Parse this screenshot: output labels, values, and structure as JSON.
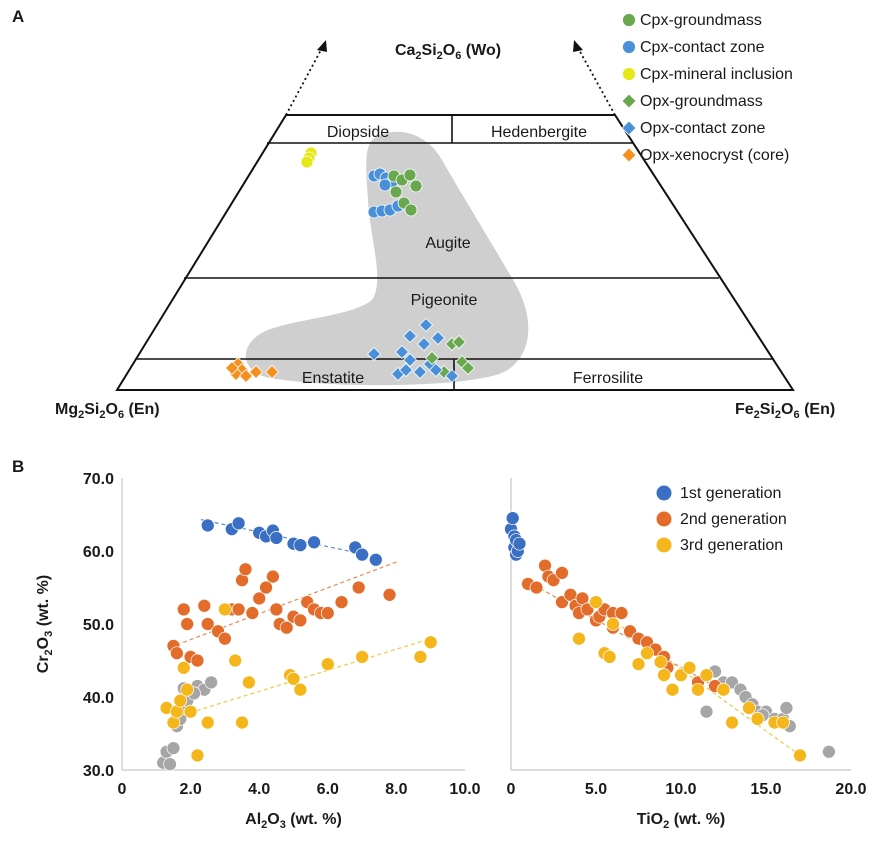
{
  "panel_labels": {
    "a": "A",
    "b": "B"
  },
  "ternary": {
    "apex_top": {
      "main": "Ca",
      "s1": "2",
      "mid": "Si",
      "s2": "2",
      "mid2": "O",
      "s3": "6",
      "tail": " (Wo)"
    },
    "corner_left": {
      "main": "Mg",
      "s1": "2",
      "mid": "Si",
      "s2": "2",
      "mid2": "O",
      "s3": "6",
      "tail": " (En)"
    },
    "corner_right": {
      "main": "Fe",
      "s1": "2",
      "mid": "Si",
      "s2": "2",
      "mid2": "O",
      "s3": "6",
      "tail": " (En)"
    },
    "fields": {
      "diopside": "Diopside",
      "hedenbergite": "Hedenbergite",
      "augite": "Augite",
      "pigeonite": "Pigeonite",
      "enstatite": "Enstatite",
      "ferrosilite": "Ferrosilite"
    },
    "legend": [
      {
        "label": "Cpx-groundmass",
        "marker": "circle",
        "color": "#6aa84f"
      },
      {
        "label": "Cpx-contact zone",
        "marker": "circle",
        "color": "#4a90d9"
      },
      {
        "label": "Cpx-mineral inclusion",
        "marker": "circle",
        "color": "#e6e619"
      },
      {
        "label": "Opx-groundmass",
        "marker": "diamond",
        "color": "#6aa84f"
      },
      {
        "label": "Opx-contact zone",
        "marker": "diamond",
        "color": "#4a90d9"
      },
      {
        "label": "Opx-xenocryst (core)",
        "marker": "diamond",
        "color": "#f5901e"
      }
    ]
  },
  "chart_data": [
    {
      "type": "scatter",
      "title": "",
      "xlabel": {
        "main": "Al",
        "s1": "2",
        "mid": "O",
        "s2": "3",
        "tail": " (wt. %)"
      },
      "ylabel": {
        "main": "Cr",
        "s1": "2",
        "mid": "O",
        "s2": "3",
        "tail": " (wt. %)"
      },
      "xlim": [
        0,
        10
      ],
      "ylim": [
        30,
        70
      ],
      "x_ticks": [
        "0",
        "2.0",
        "4.0",
        "6.0",
        "8.0",
        "10.0"
      ],
      "y_ticks": [
        "30.0",
        "40.0",
        "50.0",
        "60.0",
        "70.0"
      ],
      "grid": false,
      "series": [
        {
          "color": "#a6a6a6",
          "points": [
            [
              1.2,
              31
            ],
            [
              1.3,
              32.5
            ],
            [
              1.4,
              30.8
            ],
            [
              1.5,
              33
            ],
            [
              1.6,
              36
            ],
            [
              1.7,
              37
            ],
            [
              1.8,
              38.5
            ],
            [
              1.9,
              39.5
            ],
            [
              2.0,
              41
            ],
            [
              2.2,
              41.5
            ],
            [
              2.4,
              41
            ],
            [
              2.6,
              42
            ],
            [
              1.8,
              41.2
            ],
            [
              2.1,
              40.5
            ]
          ]
        },
        {
          "name": "1st generation",
          "color": "#3a6fc4",
          "points": [
            [
              2.5,
              63.5
            ],
            [
              3.2,
              63
            ],
            [
              3.4,
              63.8
            ],
            [
              4.0,
              62.5
            ],
            [
              4.2,
              62
            ],
            [
              4.4,
              62.8
            ],
            [
              4.5,
              61.8
            ],
            [
              5.0,
              61
            ],
            [
              5.2,
              60.8
            ],
            [
              5.6,
              61.2
            ],
            [
              6.8,
              60.5
            ],
            [
              7.0,
              59.5
            ],
            [
              7.4,
              58.8
            ]
          ],
          "trend": [
            [
              2.3,
              64.3
            ],
            [
              7.6,
              59.0
            ]
          ]
        },
        {
          "name": "2nd generation",
          "color": "#e46c2a",
          "points": [
            [
              1.5,
              47
            ],
            [
              1.6,
              46
            ],
            [
              1.8,
              52
            ],
            [
              1.9,
              50
            ],
            [
              2.0,
              45.5
            ],
            [
              2.2,
              45
            ],
            [
              2.4,
              52.5
            ],
            [
              2.5,
              50
            ],
            [
              2.8,
              49
            ],
            [
              3.0,
              48
            ],
            [
              3.2,
              52
            ],
            [
              3.4,
              52
            ],
            [
              3.5,
              56
            ],
            [
              3.6,
              57.5
            ],
            [
              3.8,
              51.5
            ],
            [
              4.0,
              53.5
            ],
            [
              4.2,
              55
            ],
            [
              4.4,
              56.5
            ],
            [
              4.5,
              52
            ],
            [
              4.6,
              50
            ],
            [
              4.8,
              49.5
            ],
            [
              5.0,
              51
            ],
            [
              5.2,
              50.5
            ],
            [
              5.4,
              53
            ],
            [
              5.6,
              52
            ],
            [
              5.8,
              51.5
            ],
            [
              6.0,
              51.5
            ],
            [
              6.4,
              53
            ],
            [
              6.9,
              55
            ],
            [
              7.8,
              54
            ]
          ],
          "trend": [
            [
              1.4,
              46.8
            ],
            [
              8.0,
              58.5
            ]
          ]
        },
        {
          "name": "3rd generation",
          "color": "#f5b61c",
          "points": [
            [
              1.3,
              38.5
            ],
            [
              1.5,
              36.5
            ],
            [
              1.6,
              38
            ],
            [
              1.7,
              39.5
            ],
            [
              1.8,
              44
            ],
            [
              1.9,
              41
            ],
            [
              2.0,
              38
            ],
            [
              2.5,
              36.5
            ],
            [
              3.0,
              52
            ],
            [
              3.3,
              45
            ],
            [
              3.5,
              36.5
            ],
            [
              3.7,
              42
            ],
            [
              4.9,
              43
            ],
            [
              5.0,
              42.5
            ],
            [
              5.2,
              41
            ],
            [
              6.0,
              44.5
            ],
            [
              7.0,
              45.5
            ],
            [
              8.7,
              45.5
            ],
            [
              9.0,
              47.5
            ],
            [
              2.2,
              32
            ]
          ],
          "trend": [
            [
              1.4,
              37.0
            ],
            [
              9.0,
              48.0
            ]
          ]
        }
      ]
    },
    {
      "type": "scatter",
      "title": "",
      "xlabel": {
        "main": "TiO",
        "s1": "2",
        "mid": "",
        "s2": "",
        "tail": " (wt. %)"
      },
      "xlim": [
        0,
        20
      ],
      "ylim": [
        30,
        70
      ],
      "x_ticks": [
        "0",
        "5.0",
        "10.0",
        "15.0",
        "20.0"
      ],
      "grid": false,
      "series": [
        {
          "color": "#a6a6a6",
          "points": [
            [
              12.0,
              43.5
            ],
            [
              12.5,
              42
            ],
            [
              13.0,
              42
            ],
            [
              13.5,
              41
            ],
            [
              13.8,
              40
            ],
            [
              14.2,
              39
            ],
            [
              14.5,
              38
            ],
            [
              15.0,
              38
            ],
            [
              15.5,
              37
            ],
            [
              16.0,
              37
            ],
            [
              16.2,
              38.5
            ],
            [
              16.4,
              36
            ],
            [
              18.7,
              32.5
            ],
            [
              11.5,
              38
            ],
            [
              14.8,
              37.5
            ]
          ]
        },
        {
          "name": "1st generation",
          "color": "#3a6fc4",
          "points": [
            [
              0.0,
              63
            ],
            [
              0.1,
              64.5
            ],
            [
              0.2,
              62
            ],
            [
              0.2,
              60.5
            ],
            [
              0.3,
              61.5
            ],
            [
              0.3,
              59.5
            ],
            [
              0.4,
              60
            ],
            [
              0.5,
              61
            ]
          ]
        },
        {
          "name": "2nd generation",
          "color": "#e46c2a",
          "points": [
            [
              1.0,
              55.5
            ],
            [
              1.5,
              55
            ],
            [
              2.0,
              58
            ],
            [
              2.2,
              56.5
            ],
            [
              2.5,
              56
            ],
            [
              3.0,
              57
            ],
            [
              3.0,
              53
            ],
            [
              3.5,
              54
            ],
            [
              3.8,
              52.5
            ],
            [
              4.0,
              51.5
            ],
            [
              4.2,
              53.5
            ],
            [
              4.5,
              52
            ],
            [
              5.0,
              50.5
            ],
            [
              5.2,
              51
            ],
            [
              5.5,
              52
            ],
            [
              6.0,
              51.5
            ],
            [
              6.0,
              49.5
            ],
            [
              6.5,
              51.5
            ],
            [
              7.0,
              49
            ],
            [
              7.5,
              48
            ],
            [
              8.0,
              47.5
            ],
            [
              8.5,
              46.5
            ],
            [
              9.0,
              45.5
            ],
            [
              9.2,
              44
            ],
            [
              10.0,
              43
            ],
            [
              11.0,
              42
            ],
            [
              12.0,
              41.5
            ],
            [
              12.5,
              41
            ]
          ],
          "trend": [
            [
              1.0,
              55.8
            ],
            [
              12.5,
              40.8
            ]
          ]
        },
        {
          "name": "3rd generation",
          "color": "#f5b61c",
          "points": [
            [
              4.0,
              48
            ],
            [
              5.0,
              53
            ],
            [
              5.5,
              46
            ],
            [
              5.8,
              45.5
            ],
            [
              7.5,
              44.5
            ],
            [
              8.0,
              46
            ],
            [
              9.0,
              43
            ],
            [
              9.5,
              41
            ],
            [
              10.0,
              43
            ],
            [
              10.5,
              44
            ],
            [
              11.0,
              41
            ],
            [
              11.5,
              43
            ],
            [
              12.5,
              41
            ],
            [
              13.0,
              36.5
            ],
            [
              14.0,
              38.5
            ],
            [
              14.5,
              37
            ],
            [
              15.5,
              36.5
            ],
            [
              16.0,
              36.5
            ],
            [
              17.0,
              32
            ],
            [
              6.0,
              50
            ],
            [
              8.8,
              44.8
            ]
          ],
          "trend": [
            [
              4.5,
              53.0
            ],
            [
              17.0,
              32.0
            ]
          ]
        }
      ],
      "legend_position": "top-right"
    }
  ]
}
